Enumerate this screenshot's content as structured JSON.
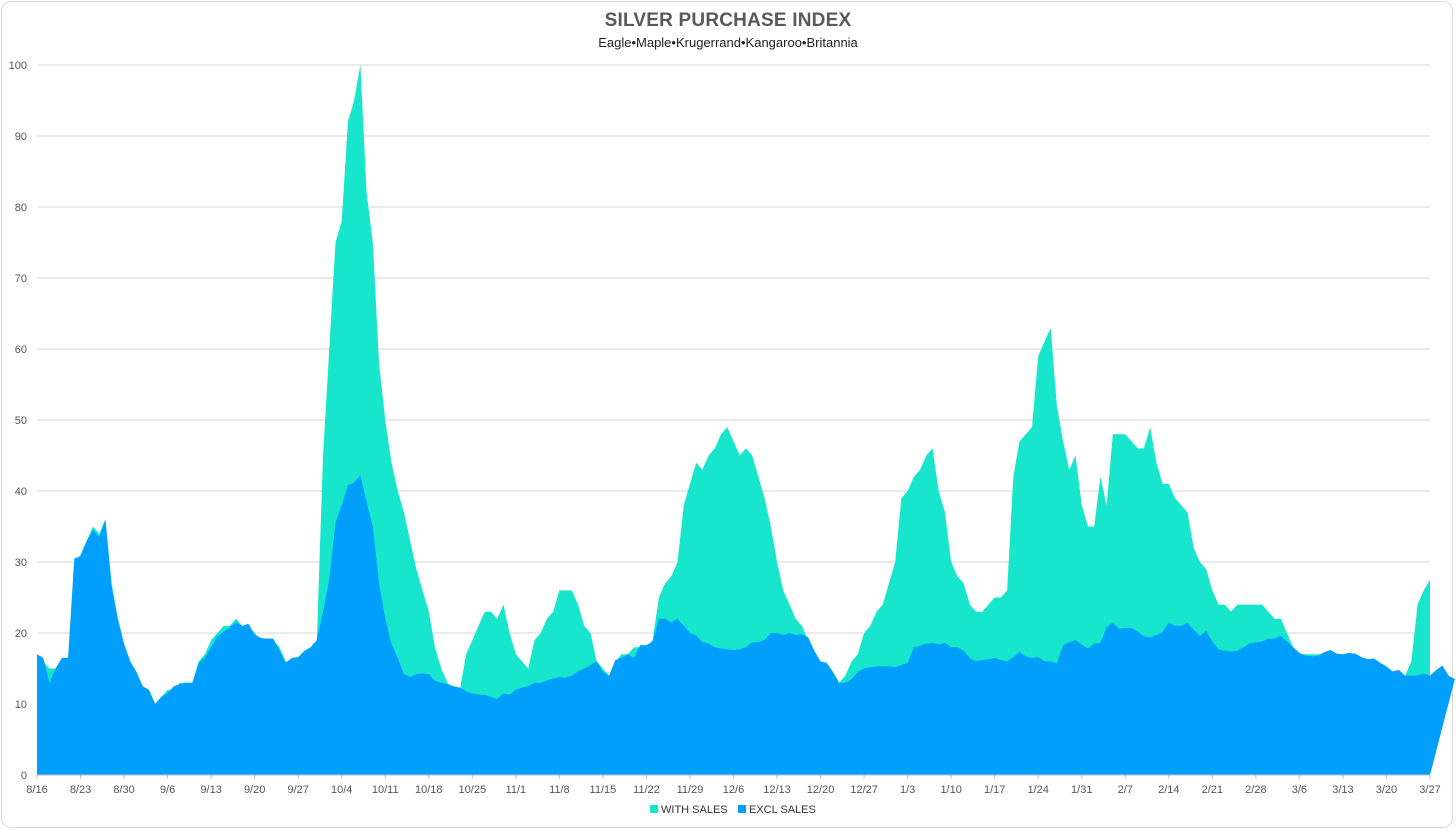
{
  "chart_data": {
    "type": "area",
    "title": "SILVER PURCHASE INDEX",
    "subtitle": "Eagle•Maple•Krugerrand•Kangaroo•Britannia",
    "ylim": [
      0,
      100
    ],
    "yticks": [
      "0",
      "10",
      "20",
      "30",
      "40",
      "50",
      "60",
      "70",
      "80",
      "90",
      "100"
    ],
    "x_tick_labels": [
      "8/16",
      "8/23",
      "8/30",
      "9/6",
      "9/13",
      "9/20",
      "9/27",
      "10/4",
      "10/11",
      "10/18",
      "10/25",
      "11/1",
      "11/8",
      "11/15",
      "11/22",
      "11/29",
      "12/6",
      "12/13",
      "12/20",
      "12/27",
      "1/3",
      "1/10",
      "1/17",
      "1/24",
      "1/31",
      "2/7",
      "2/14",
      "2/21",
      "2/28",
      "3/6",
      "3/13",
      "3/20",
      "3/27"
    ],
    "grid": true,
    "legend_position": "bottom",
    "series": [
      {
        "name": "WITH SALES",
        "color": "#17e6cc",
        "values": [
          17,
          16,
          15,
          15,
          16,
          16,
          30,
          31,
          33,
          35,
          34,
          36,
          27,
          22,
          18,
          16,
          14,
          12,
          12,
          10,
          11,
          12,
          12,
          13,
          13,
          13,
          16,
          17,
          19,
          20,
          21,
          21,
          22,
          21,
          21,
          20,
          19,
          19,
          19,
          18,
          16,
          16,
          16,
          17,
          18,
          19,
          45,
          60,
          75,
          78,
          92,
          95,
          100,
          82,
          75,
          58,
          50,
          44,
          40,
          37,
          33,
          29,
          26,
          23,
          18,
          15,
          13,
          12,
          12,
          17,
          19,
          21,
          23,
          23,
          22,
          24,
          20,
          17,
          16,
          15,
          19,
          20,
          22,
          23,
          26,
          26,
          26,
          24,
          21,
          20,
          16,
          15,
          14,
          16,
          17,
          17,
          18,
          18,
          18,
          19,
          25,
          27,
          28,
          30,
          38,
          41,
          44,
          43,
          45,
          46,
          48,
          49,
          47,
          45,
          46,
          45,
          42,
          39,
          35,
          30,
          26,
          24,
          22,
          21,
          19,
          17,
          16,
          15,
          13,
          13,
          14,
          16,
          17,
          20,
          21,
          23,
          24,
          27,
          30,
          39,
          40,
          42,
          43,
          45,
          46,
          40,
          37,
          30,
          28,
          27,
          24,
          23,
          23,
          24,
          25,
          25,
          26,
          42,
          47,
          48,
          49,
          59,
          61,
          63,
          52,
          47,
          43,
          45,
          38,
          35,
          35,
          42,
          38,
          48,
          48,
          48,
          47,
          46,
          46,
          49,
          44,
          41,
          41,
          39,
          38,
          37,
          32,
          30,
          29,
          26,
          24,
          24,
          23,
          24,
          24,
          24,
          24,
          24,
          23,
          22,
          22,
          20,
          18,
          17,
          17,
          17,
          17,
          17,
          17,
          17,
          17,
          16,
          16,
          16,
          15,
          15,
          14,
          14,
          14,
          14,
          14,
          16,
          24,
          26,
          27.5
        ]
      },
      {
        "name": "EXCL SALES",
        "color": "#009ffc",
        "values": [
          17,
          16.5,
          13,
          15,
          16.5,
          16.5,
          30.5,
          30.8,
          33,
          34.5,
          33.5,
          36,
          26.5,
          22,
          18.5,
          16,
          14.5,
          12.5,
          12,
          10,
          11,
          11.5,
          12.5,
          12.8,
          13,
          13,
          15.8,
          16.5,
          18,
          19.5,
          20.2,
          20.8,
          21.5,
          21,
          21.3,
          19.8,
          19.3,
          19.2,
          19.2,
          17.5,
          15.8,
          16.5,
          16.6,
          17.5,
          18,
          19,
          23,
          27.5,
          35.5,
          38,
          40.8,
          41.2,
          42.2,
          38.5,
          35,
          27,
          22,
          18.5,
          16.5,
          14.2,
          13.8,
          14.2,
          14.3,
          14.2,
          13.3,
          13,
          12.8,
          12.5,
          12.3,
          11.8,
          11.5,
          11.3,
          11.3,
          11,
          10.7,
          11.5,
          11.3,
          12,
          12.3,
          12.5,
          13,
          13,
          13.3,
          13.6,
          13.8,
          13.7,
          14,
          14.6,
          15,
          15.5,
          16,
          14.5,
          14,
          16.2,
          16.5,
          17,
          16.5,
          18.3,
          18.3,
          18.8,
          22,
          22,
          21.5,
          22,
          21,
          20,
          19.7,
          18.7,
          18.5,
          18,
          17.8,
          17.7,
          17.6,
          17.7,
          18,
          18.7,
          18.7,
          19,
          20,
          20,
          19.7,
          20,
          19.7,
          19.8,
          19.4,
          17.5,
          16,
          15.8,
          14.5,
          13,
          13,
          13.5,
          14.5,
          15,
          15.2,
          15.3,
          15.3,
          15.3,
          15.2,
          15.5,
          15.8,
          18,
          18.2,
          18.5,
          18.6,
          18.4,
          18.6,
          18,
          18,
          17.5,
          16.5,
          16,
          16.2,
          16.3,
          16.5,
          16.2,
          16,
          16.6,
          17.3,
          16.7,
          16.5,
          16.6,
          16,
          16,
          15.7,
          18.3,
          18.7,
          19,
          18.4,
          17.8,
          18.5,
          18.6,
          20.8,
          21.5,
          20.6,
          20.7,
          20.7,
          20.2,
          19.5,
          19.4,
          19.7,
          20.1,
          21.5,
          21,
          21,
          21.4,
          20.5,
          19.6,
          20.3,
          18.8,
          17.7,
          17.5,
          17.4,
          17.5,
          18,
          18.5,
          18.7,
          18.8,
          19.2,
          19.2,
          19.6,
          18.8,
          18,
          17.2,
          16.8,
          16.7,
          16.8,
          17.3,
          17.6,
          17.1,
          17,
          17.2,
          17.1,
          16.6,
          16.3,
          16.4,
          15.8,
          15.3,
          14.6,
          14.8,
          14,
          14,
          14,
          14.3,
          14,
          14.8,
          15.4,
          14,
          13.5
        ]
      }
    ]
  }
}
